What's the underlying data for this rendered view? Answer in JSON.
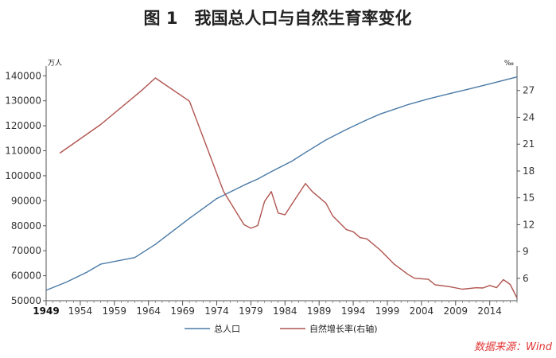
{
  "title": "图 1　我国总人口与自然生育率变化",
  "source": "数据来源：Wind",
  "chart_data": {
    "type": "line",
    "left_unit": "万人",
    "right_unit": "‰",
    "x_ticks": [
      "1949",
      "1954",
      "1959",
      "1964",
      "1969",
      "1974",
      "1979",
      "1984",
      "1989",
      "1994",
      "1999",
      "2004",
      "2009",
      "2014"
    ],
    "left_ticks": [
      "50000",
      "60000",
      "70000",
      "80000",
      "90000",
      "100000",
      "110000",
      "120000",
      "130000",
      "140000"
    ],
    "right_ticks": [
      "6",
      "9",
      "12",
      "15",
      "18",
      "21",
      "24",
      "27"
    ],
    "xlim": [
      1949,
      2018
    ],
    "ylim_left": [
      50000,
      142000
    ],
    "ylim_right": [
      3.5,
      29.2
    ],
    "legend_position": "bottom",
    "series": [
      {
        "name": "总人口",
        "axis": "left",
        "color": "#4a7aa7",
        "x": [
          1949,
          1952,
          1955,
          1957,
          1962,
          1965,
          1970,
          1974,
          1978,
          1980,
          1982,
          1985,
          1987,
          1990,
          1993,
          1996,
          1998,
          2002,
          2005,
          2008,
          2011,
          2014,
          2018
        ],
        "y": [
          54167,
          57482,
          61465,
          64653,
          67295,
          72538,
          82992,
          90859,
          96259,
          98705,
          101654,
          105851,
          109300,
          114333,
          118517,
          122389,
          124761,
          128453,
          130756,
          132802,
          134735,
          136782,
          139538
        ]
      },
      {
        "name": "自然增长率(右轴)",
        "axis": "right",
        "color": "#b05550",
        "x": [
          1951,
          1957,
          1963,
          1965,
          1970,
          1975,
          1978,
          1979,
          1980,
          1981,
          1982,
          1983,
          1984,
          1985,
          1987,
          1988,
          1990,
          1991,
          1993,
          1994,
          1995,
          1996,
          1998,
          2000,
          2002,
          2003,
          2005,
          2006,
          2008,
          2010,
          2012,
          2013,
          2014,
          2015,
          2016,
          2017,
          2018
        ],
        "y": [
          20.0,
          23.2,
          27.0,
          28.4,
          25.8,
          15.7,
          12.0,
          11.6,
          11.9,
          14.6,
          15.7,
          13.3,
          13.1,
          14.3,
          16.6,
          15.7,
          14.4,
          12.98,
          11.45,
          11.21,
          10.55,
          10.42,
          9.14,
          7.58,
          6.45,
          6.01,
          5.89,
          5.28,
          5.08,
          4.79,
          4.95,
          4.92,
          5.21,
          4.96,
          5.86,
          5.32,
          3.81
        ]
      }
    ]
  }
}
